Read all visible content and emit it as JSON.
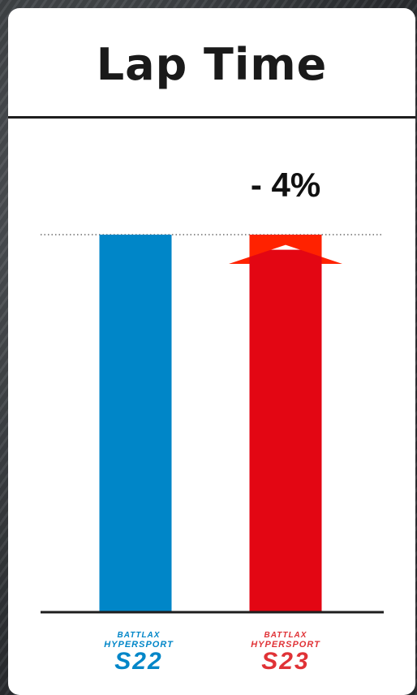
{
  "chart_data": {
    "type": "bar",
    "title": "Lap Time",
    "categories": [
      "S22",
      "S23"
    ],
    "values": [
      100,
      96
    ],
    "ylim": [
      0,
      100
    ],
    "colors": [
      "#0086c8",
      "#e30613"
    ],
    "annotation": "- 4%",
    "arrow_color": "#ff2200",
    "reference_line": 100,
    "grid": false
  },
  "logos": [
    {
      "brand": "BATTLAX",
      "line": "HYPERSPORT",
      "model": "S22",
      "color": "#0086c8"
    },
    {
      "brand": "BATTLAX",
      "line": "HYPERSPORT",
      "model": "S23",
      "color": "#e03236"
    }
  ]
}
